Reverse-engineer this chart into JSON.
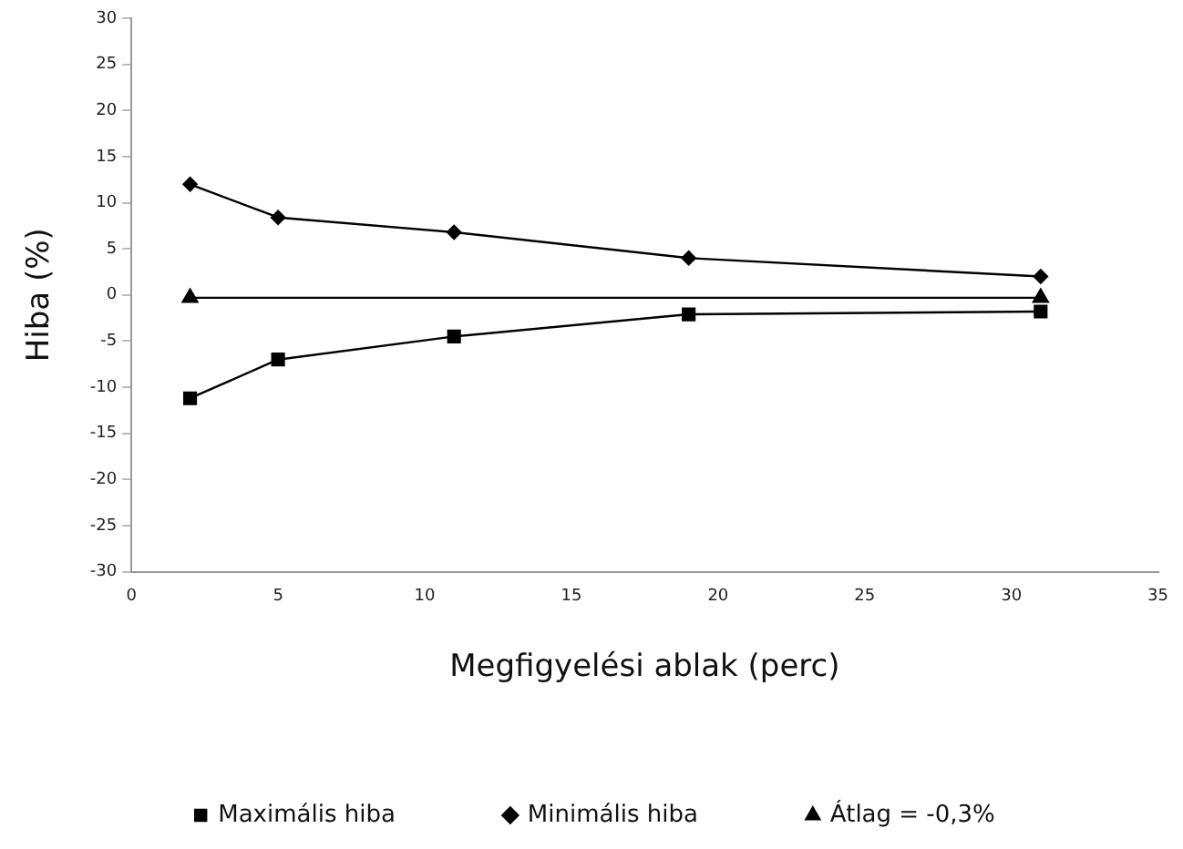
{
  "chart_data": {
    "type": "line",
    "xlabel": "Megfigyelési ablak (perc)",
    "ylabel": "Hiba (%)",
    "x": [
      2,
      5,
      11,
      19,
      31
    ],
    "series": [
      {
        "name": "Maximális hiba",
        "color": "#000000",
        "marker": "square",
        "values": [
          -11.2,
          -7.0,
          -4.5,
          -2.1,
          -1.8
        ]
      },
      {
        "name": "Minimális hiba",
        "color": "#000000",
        "marker": "diamond",
        "values": [
          12.0,
          8.4,
          6.8,
          4.0,
          2.0
        ]
      },
      {
        "name": "Átlag = -0,3%",
        "color": "#000000",
        "marker": "triangle",
        "x": [
          2,
          31
        ],
        "values": [
          -0.3,
          -0.3
        ]
      }
    ],
    "xlim": [
      0,
      35
    ],
    "xticks": [
      0,
      5,
      10,
      15,
      20,
      25,
      30,
      35
    ],
    "ylim": [
      -30,
      30
    ],
    "yticks": [
      -30,
      -25,
      -20,
      -15,
      -10,
      -5,
      0,
      5,
      10,
      15,
      20,
      25,
      30
    ],
    "grid": false,
    "legend": "bottom",
    "line_style": "solid"
  }
}
